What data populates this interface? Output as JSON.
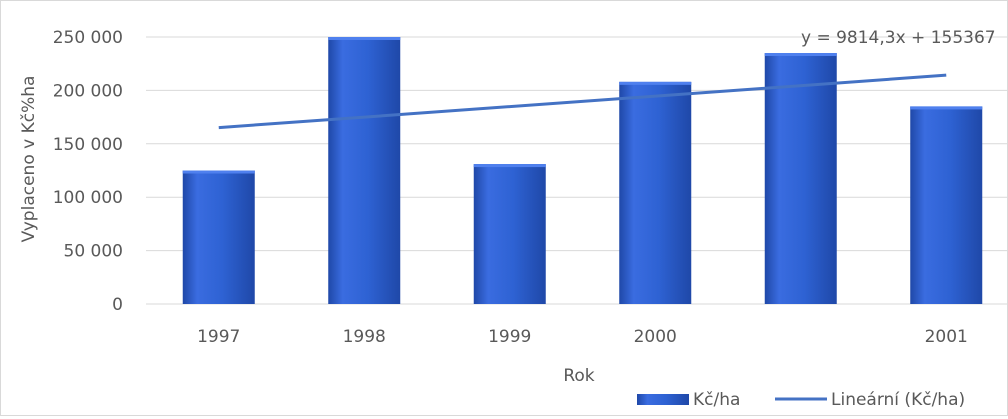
{
  "chart_data": {
    "type": "bar",
    "categories": [
      "1997",
      "1998",
      "1999",
      "2000",
      "",
      "2001"
    ],
    "series": [
      {
        "name": "Kč/ha",
        "values": [
          125000,
          250000,
          131000,
          208000,
          235000,
          185000
        ]
      }
    ],
    "trendline": {
      "name": "Lineární (Kč/ha)",
      "equation": "y = 9814,3x + 155367",
      "slope": 9814.3,
      "intercept": 155367
    },
    "ylim": [
      0,
      250000
    ],
    "yticks": [
      0,
      50000,
      100000,
      150000,
      200000,
      250000
    ],
    "ytick_labels": [
      "0",
      "50 000",
      "100 000",
      "150 000",
      "200 000",
      "250 000"
    ],
    "xlabel": "Rok",
    "ylabel": "Vyplaceno v Kč%ha",
    "grid": true,
    "legend_position": "bottom-right",
    "colors": {
      "bar": "#2e62d3",
      "bar_dark": "#1f48a8",
      "bar_light": "#4f80ee",
      "trendline": "#4472c4",
      "grid": "#d9d9d9",
      "text": "#595959"
    }
  }
}
